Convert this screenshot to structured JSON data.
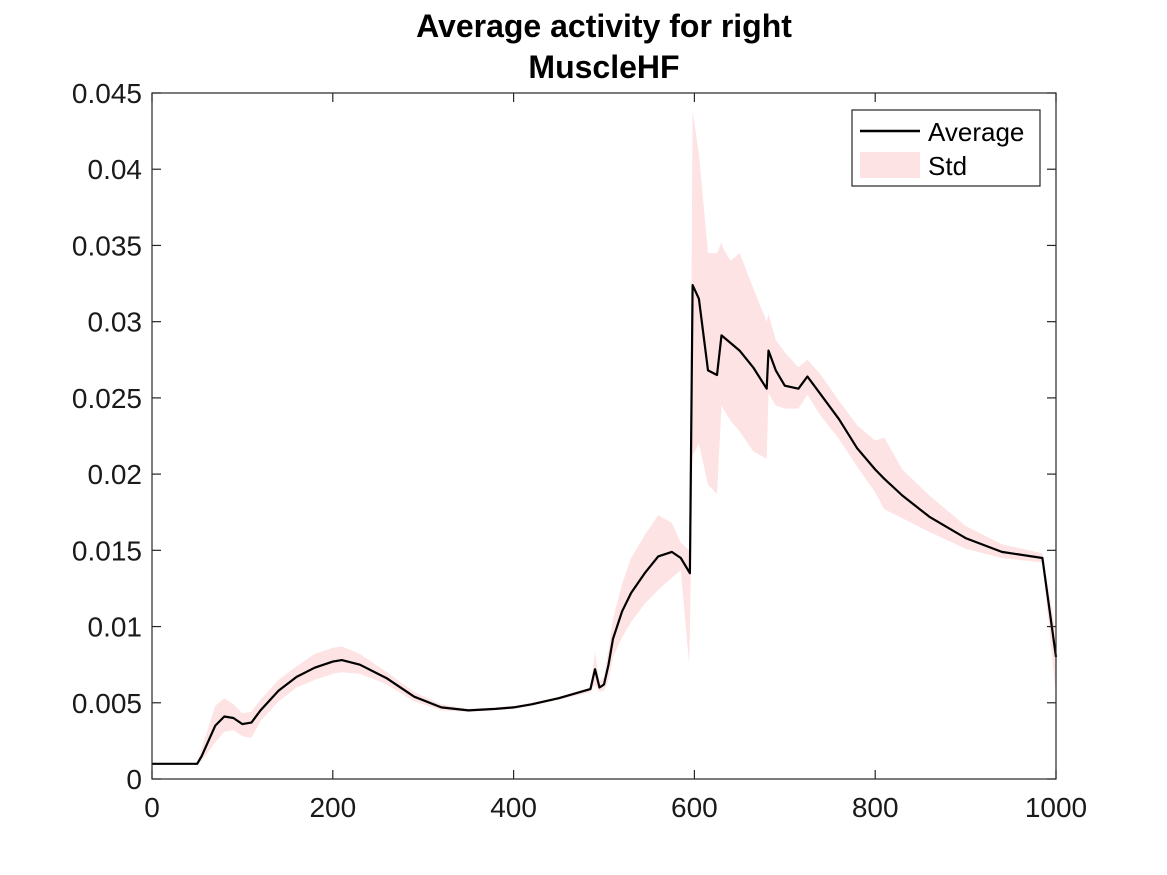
{
  "chart_data": {
    "type": "area",
    "title_lines": [
      "Average activity for right",
      "MuscleHF"
    ],
    "xlabel": "",
    "ylabel": "",
    "xlim": [
      0,
      1000
    ],
    "ylim": [
      0,
      0.045
    ],
    "x_ticks": [
      0,
      200,
      400,
      600,
      800,
      1000
    ],
    "x_tick_labels": [
      "0",
      "200",
      "400",
      "600",
      "800",
      "1000"
    ],
    "y_ticks": [
      0,
      0.005,
      0.01,
      0.015,
      0.02,
      0.025,
      0.03,
      0.035,
      0.04,
      0.045
    ],
    "y_tick_labels": [
      "0",
      "0.005",
      "0.01",
      "0.015",
      "0.02",
      "0.025",
      "0.03",
      "0.035",
      "0.04",
      "0.045"
    ],
    "grid": false,
    "legend_position": "top-right",
    "legend": [
      "Average",
      "Std"
    ],
    "colors": {
      "average": "#000000",
      "std_band": "#fde3e3"
    },
    "series": [
      {
        "name": "Average",
        "x": [
          0,
          50,
          55,
          70,
          80,
          90,
          100,
          110,
          120,
          140,
          160,
          180,
          200,
          210,
          230,
          260,
          290,
          320,
          350,
          380,
          400,
          420,
          450,
          485,
          490,
          495,
          500,
          505,
          510,
          520,
          530,
          545,
          560,
          575,
          585,
          595,
          598,
          605,
          615,
          625,
          630,
          632,
          640,
          650,
          665,
          680,
          682,
          690,
          700,
          715,
          725,
          740,
          760,
          780,
          800,
          810,
          830,
          860,
          900,
          940,
          985,
          1000
        ],
        "values": [
          0.001,
          0.001,
          0.0015,
          0.0035,
          0.0041,
          0.004,
          0.0036,
          0.0037,
          0.0045,
          0.0058,
          0.0067,
          0.0073,
          0.0077,
          0.0078,
          0.0075,
          0.0066,
          0.0054,
          0.0047,
          0.0045,
          0.0046,
          0.0047,
          0.0049,
          0.0053,
          0.0059,
          0.0072,
          0.006,
          0.0062,
          0.0075,
          0.0092,
          0.011,
          0.0122,
          0.0135,
          0.0146,
          0.0149,
          0.0145,
          0.0135,
          0.0324,
          0.0315,
          0.0268,
          0.0265,
          0.0291,
          0.029,
          0.0286,
          0.0281,
          0.027,
          0.0256,
          0.0281,
          0.0268,
          0.0258,
          0.0256,
          0.0264,
          0.0252,
          0.0236,
          0.0217,
          0.0203,
          0.0197,
          0.0186,
          0.0172,
          0.0158,
          0.0149,
          0.0145,
          0.008
        ]
      },
      {
        "name": "Std",
        "x": [
          0,
          50,
          55,
          70,
          80,
          90,
          100,
          110,
          120,
          140,
          160,
          180,
          200,
          210,
          230,
          260,
          290,
          320,
          350,
          380,
          400,
          420,
          450,
          485,
          490,
          495,
          500,
          505,
          510,
          520,
          530,
          545,
          560,
          575,
          585,
          594,
          595,
          598,
          605,
          615,
          625,
          630,
          632,
          640,
          650,
          665,
          680,
          682,
          690,
          700,
          715,
          725,
          740,
          760,
          780,
          800,
          810,
          830,
          860,
          900,
          940,
          985,
          1000
        ],
        "upper": [
          0.001,
          0.001,
          0.002,
          0.0048,
          0.0053,
          0.0049,
          0.0043,
          0.0044,
          0.0052,
          0.0065,
          0.0074,
          0.0082,
          0.0086,
          0.0087,
          0.0082,
          0.007,
          0.0057,
          0.0049,
          0.0046,
          0.0047,
          0.0048,
          0.005,
          0.0054,
          0.006,
          0.0083,
          0.0064,
          0.0067,
          0.0085,
          0.0105,
          0.0128,
          0.0145,
          0.016,
          0.0173,
          0.0168,
          0.0155,
          0.015,
          0.0145,
          0.0438,
          0.041,
          0.0345,
          0.0345,
          0.0352,
          0.0348,
          0.034,
          0.0345,
          0.0322,
          0.03,
          0.0305,
          0.0288,
          0.028,
          0.027,
          0.0275,
          0.0265,
          0.0248,
          0.0232,
          0.0222,
          0.0224,
          0.0203,
          0.0186,
          0.0166,
          0.0154,
          0.0148,
          0.0095
        ],
        "lower": [
          0.001,
          0.001,
          0.0012,
          0.0024,
          0.0031,
          0.0032,
          0.0028,
          0.0027,
          0.0038,
          0.0051,
          0.006,
          0.0065,
          0.0069,
          0.007,
          0.0069,
          0.0062,
          0.0051,
          0.0045,
          0.0044,
          0.0045,
          0.0046,
          0.0048,
          0.0052,
          0.0057,
          0.0062,
          0.0057,
          0.0058,
          0.0065,
          0.008,
          0.0093,
          0.0103,
          0.0115,
          0.0124,
          0.0132,
          0.0137,
          0.0076,
          0.0095,
          0.0212,
          0.022,
          0.0193,
          0.0187,
          0.0245,
          0.0243,
          0.0235,
          0.0228,
          0.0215,
          0.021,
          0.0253,
          0.0245,
          0.0243,
          0.0243,
          0.0252,
          0.0238,
          0.0223,
          0.0205,
          0.0188,
          0.0177,
          0.0171,
          0.0162,
          0.0151,
          0.0145,
          0.0142,
          0.0055
        ]
      }
    ]
  }
}
